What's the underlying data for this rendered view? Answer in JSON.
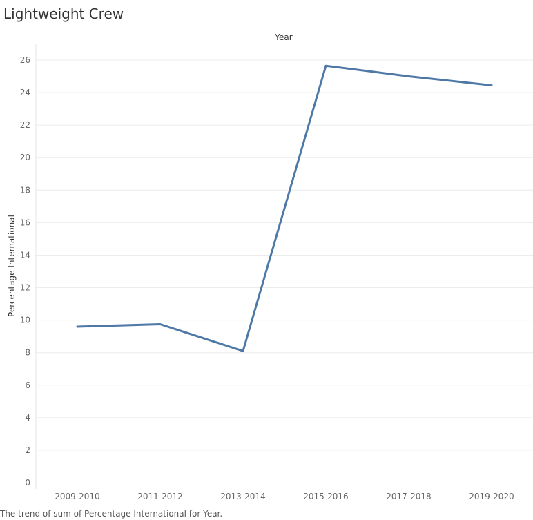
{
  "chart_data": {
    "type": "line",
    "title": "Lightweight Crew",
    "xlabel": "Year",
    "ylabel": "Percentage International",
    "categories": [
      "2009-2010",
      "2011-2012",
      "2013-2014",
      "2015-2016",
      "2017-2018",
      "2019-2020"
    ],
    "series": [
      {
        "values": [
          9.6,
          9.75,
          8.1,
          25.65,
          25.0,
          24.45
        ],
        "color": "#4e79a7"
      }
    ],
    "ylim": [
      0,
      26
    ],
    "yticks": [
      0,
      2,
      4,
      6,
      8,
      10,
      12,
      14,
      16,
      18,
      20,
      22,
      24,
      26
    ],
    "grid": true,
    "x_axis_title_position": "top"
  },
  "caption": "The trend of sum of Percentage International for Year."
}
